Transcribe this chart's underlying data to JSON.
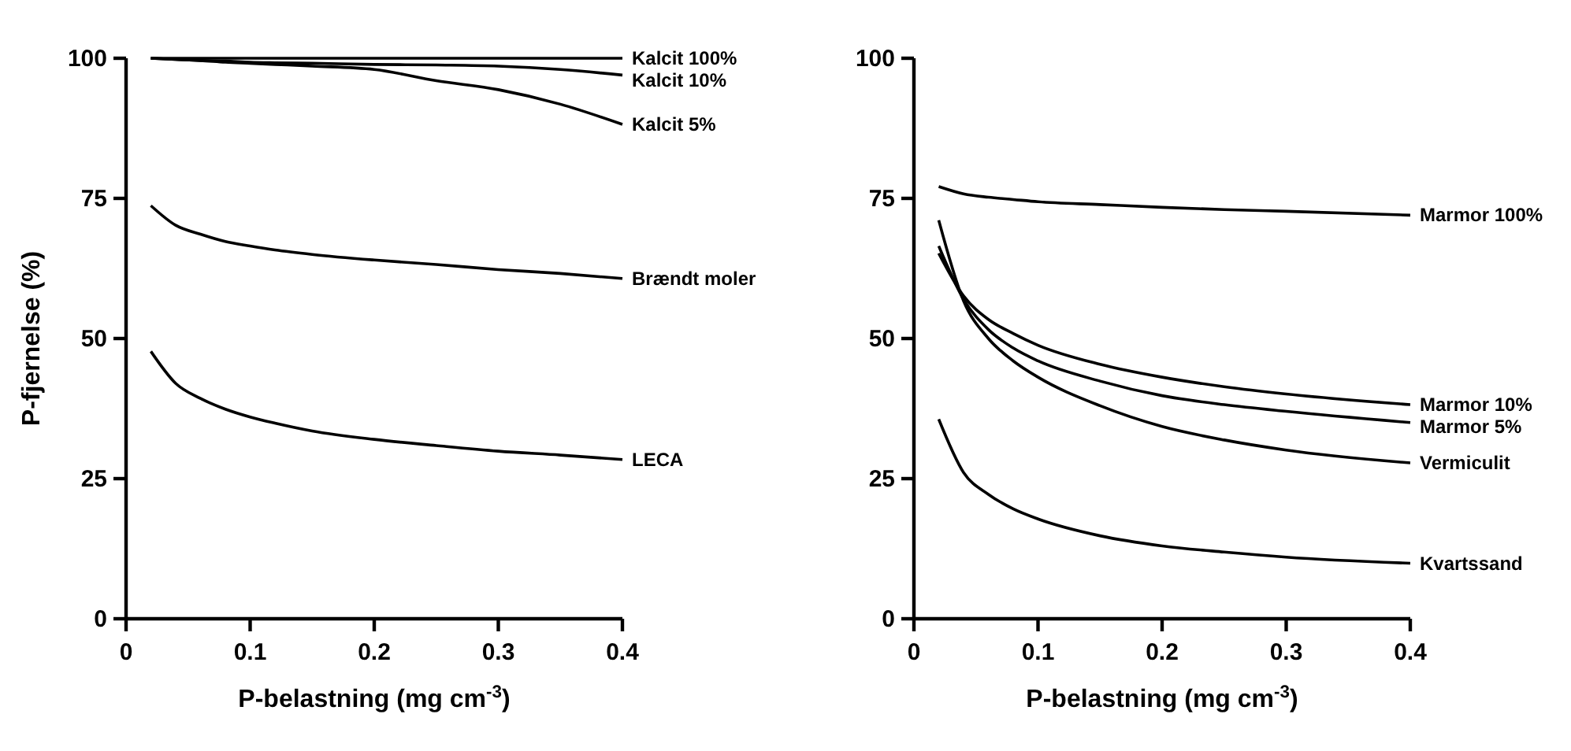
{
  "chart_data": [
    {
      "type": "line",
      "xlabel": "P-belastning (mg cm$^{-3}$)",
      "ylabel": "P-fjernelse (%)",
      "xlim": [
        0,
        0.4
      ],
      "xticks": [
        0,
        0.1,
        0.2,
        0.3,
        0.4
      ],
      "ylim": [
        0,
        100
      ],
      "yticks": [
        0,
        25,
        50,
        75,
        100
      ],
      "x": [
        0.02,
        0.04,
        0.06,
        0.08,
        0.1,
        0.12,
        0.15,
        0.2,
        0.25,
        0.3,
        0.35,
        0.4
      ],
      "series": [
        {
          "name": "Kalcit 100%",
          "color": "#000000",
          "values": [
            100,
            100,
            100,
            100,
            100,
            100,
            100,
            100,
            100,
            100,
            100,
            100
          ]
        },
        {
          "name": "Kalcit 10%",
          "color": "#000000",
          "values": [
            100,
            99.8,
            99.6,
            99.5,
            99.3,
            99.2,
            99.1,
            98.9,
            98.8,
            98.6,
            98,
            97
          ]
        },
        {
          "name": "Kalcit 5%",
          "color": "#000000",
          "values": [
            100,
            99.8,
            99.6,
            99.3,
            99.1,
            98.9,
            98.6,
            98,
            96,
            94.4,
            91.8,
            88.2
          ]
        },
        {
          "name": "Brændt moler",
          "color": "#000000",
          "values": [
            73.7,
            70.2,
            68.6,
            67.3,
            66.5,
            65.8,
            65,
            64,
            63.2,
            62.3,
            61.6,
            60.7
          ]
        },
        {
          "name": "LECA",
          "color": "#000000",
          "values": [
            47.7,
            42,
            39.3,
            37.4,
            36,
            34.9,
            33.5,
            32,
            30.9,
            29.9,
            29.2,
            28.4
          ]
        }
      ]
    },
    {
      "type": "line",
      "xlabel": "P-belastning (mg cm$^{-3}$)",
      "xlim": [
        0,
        0.4
      ],
      "xticks": [
        0,
        0.1,
        0.2,
        0.3,
        0.4
      ],
      "ylim": [
        0,
        100
      ],
      "yticks": [
        0,
        25,
        50,
        75,
        100
      ],
      "x": [
        0.02,
        0.04,
        0.06,
        0.08,
        0.1,
        0.15,
        0.2,
        0.25,
        0.3,
        0.4
      ],
      "series": [
        {
          "name": "Marmor 100%",
          "color": "#000000",
          "values": [
            77.1,
            75.8,
            75.2,
            74.8,
            74.4,
            73.9,
            73.4,
            73,
            72.7,
            72
          ]
        },
        {
          "name": "Marmor 10%",
          "color": "#000000",
          "values": [
            65.2,
            57.6,
            53.4,
            50.9,
            48.8,
            45.4,
            43.1,
            41.4,
            40.1,
            38.2
          ]
        },
        {
          "name": "Marmor 5%",
          "color": "#000000",
          "values": [
            66.5,
            57,
            51.6,
            48.3,
            46,
            42.4,
            39.8,
            38.2,
            37,
            35
          ]
        },
        {
          "name": "Vermiculit",
          "color": "#000000",
          "values": [
            71.1,
            56.7,
            50,
            46,
            43.1,
            38,
            34.3,
            31.9,
            30.1,
            27.8
          ]
        },
        {
          "name": "Kvartssand",
          "color": "#000000",
          "values": [
            35.6,
            26.1,
            22.2,
            19.6,
            17.8,
            14.8,
            13,
            11.9,
            11,
            9.9
          ]
        }
      ]
    }
  ]
}
